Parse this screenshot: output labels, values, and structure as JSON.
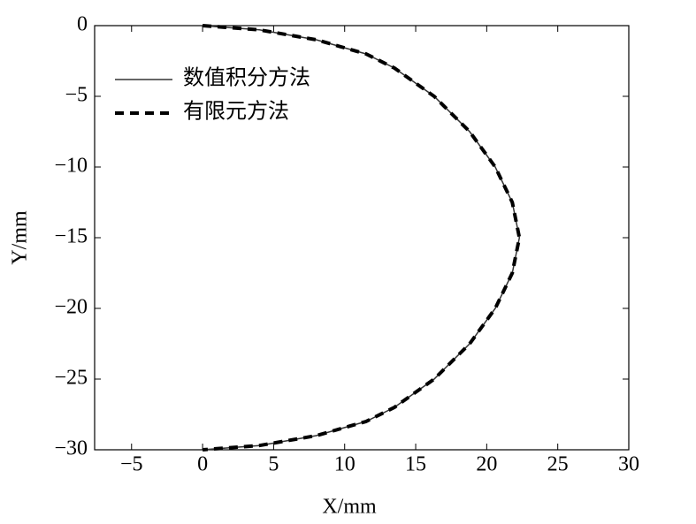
{
  "chart_data": {
    "type": "line",
    "xlabel": "X/mm",
    "ylabel": "Y/mm",
    "xlim": [
      -7.6,
      30
    ],
    "ylim": [
      -30,
      0
    ],
    "xticks": [
      {
        "value": -5,
        "label": "−5"
      },
      0,
      5,
      10,
      15,
      20,
      25,
      30
    ],
    "yticks": [
      0,
      {
        "value": -5,
        "label": "−5"
      },
      {
        "value": -10,
        "label": "−10"
      },
      {
        "value": -15,
        "label": "−15"
      },
      {
        "value": -20,
        "label": "−20"
      },
      {
        "value": -25,
        "label": "−25"
      },
      {
        "value": -30,
        "label": "−30"
      }
    ],
    "legend": "upper left",
    "series": [
      {
        "name": "数值积分方法",
        "color": "#333333",
        "dash": false,
        "x": [
          0,
          4,
          8,
          11.5,
          13.5,
          16.3,
          18.8,
          20.6,
          21.8,
          22.3,
          21.8,
          20.6,
          18.8,
          16.3,
          13.5,
          11.5,
          8,
          4,
          0
        ],
        "values": [
          0,
          -0.3,
          -1,
          -2,
          -3,
          -5,
          -7.5,
          -10,
          -12.5,
          -15,
          -17.5,
          -20,
          -22.5,
          -25,
          -27,
          -28,
          -29,
          -29.7,
          -30
        ]
      },
      {
        "name": "有限元方法",
        "color": "#000000",
        "dash": true,
        "x": [
          0,
          4,
          8,
          11.5,
          13.5,
          16.3,
          18.8,
          20.6,
          21.8,
          22.3,
          21.8,
          20.6,
          18.8,
          16.3,
          13.5,
          11.5,
          8,
          4,
          0
        ],
        "values": [
          0,
          -0.3,
          -1,
          -2,
          -3,
          -5,
          -7.5,
          -10,
          -12.5,
          -15,
          -17.5,
          -20,
          -22.5,
          -25,
          -27,
          -28,
          -29,
          -29.7,
          -30
        ]
      }
    ]
  }
}
